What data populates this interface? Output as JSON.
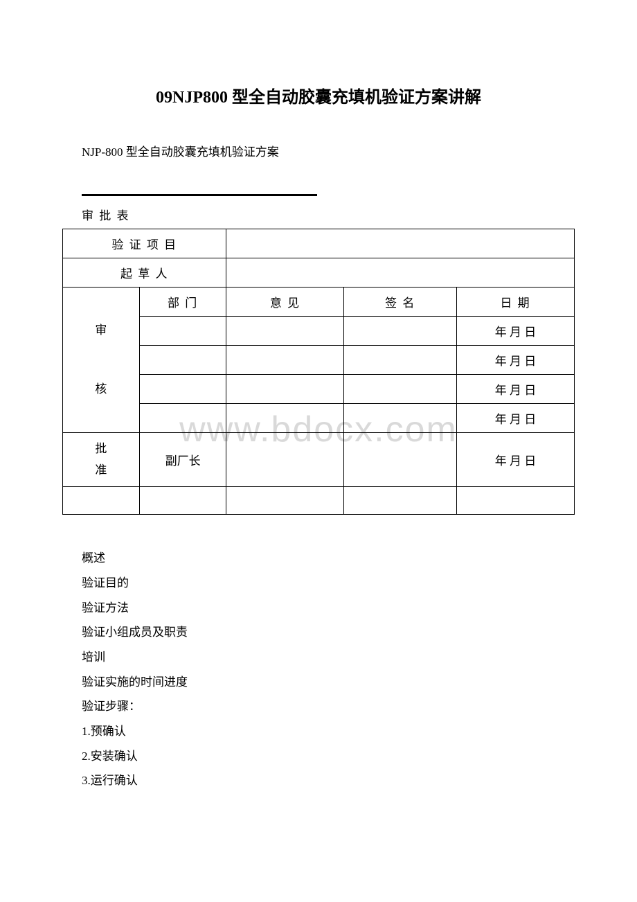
{
  "title": "09NJP800 型全自动胶囊充填机验证方案讲解",
  "subtitle": "NJP-800 型全自动胶囊充填机验证方案",
  "approval_section_label": "审 批 表",
  "watermark_text": "www.bdocx.com",
  "table": {
    "row1_label": "验 证 项 目",
    "row1_value": "",
    "row2_label": "起 草 人",
    "row2_value": "",
    "header_dept": "部 门",
    "header_opinion": "意 见",
    "header_sign": "签 名",
    "header_date": "日 期",
    "review_label": "审\n\n核",
    "date_text": "年 月 日",
    "approve_label": "批\n准",
    "approve_dept": "副厂长"
  },
  "toc": [
    "概述",
    "验证目的",
    "验证方法",
    "验证小组成员及职责",
    "培训",
    "验证实施的时间进度",
    "验证步骤：",
    "1.预确认",
    "2.安装确认",
    "3.运行确认"
  ]
}
